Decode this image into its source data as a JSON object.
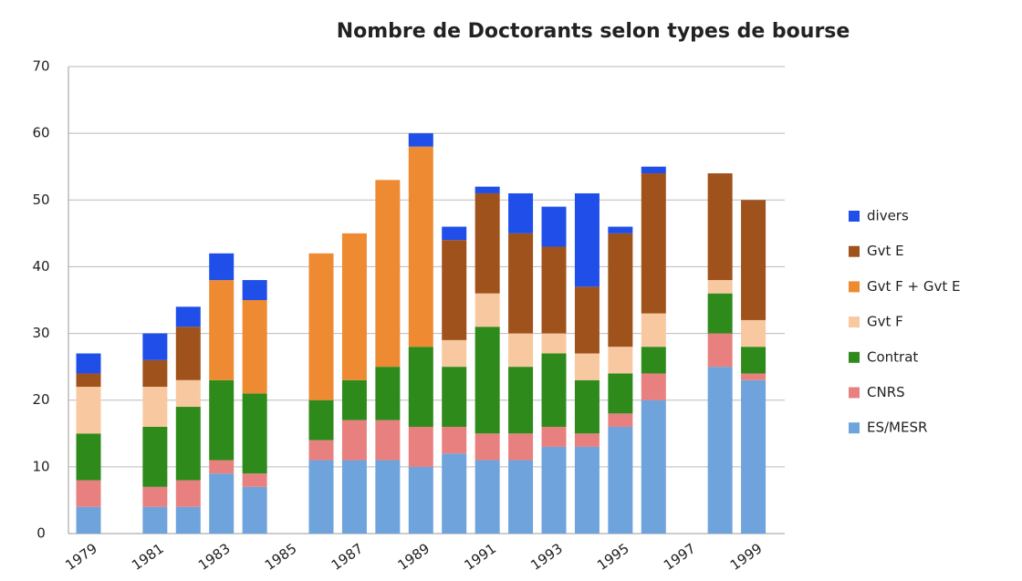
{
  "chart_data": {
    "type": "stacked_bar",
    "title": "Nombre de Doctorants selon types de bourse",
    "categories": [
      "1979",
      null,
      "1981",
      null,
      "1983",
      null,
      "1985",
      null,
      "1987",
      null,
      "1989",
      null,
      "1991",
      null,
      "1993",
      null,
      "1995",
      null,
      "1997",
      null,
      "1999"
    ],
    "series": [
      {
        "name": "ES/MESR",
        "color": "#6fa3dc",
        "values": [
          4,
          null,
          4,
          4,
          9,
          7,
          null,
          11,
          11,
          11,
          10,
          12,
          11,
          11,
          13,
          13,
          16,
          20,
          null,
          25,
          23
        ]
      },
      {
        "name": "CNRS",
        "color": "#e98080",
        "values": [
          4,
          null,
          3,
          4,
          2,
          2,
          null,
          3,
          6,
          6,
          6,
          4,
          4,
          4,
          3,
          2,
          2,
          4,
          null,
          5,
          1
        ]
      },
      {
        "name": "Contrat",
        "color": "#2f8a1c",
        "values": [
          7,
          null,
          9,
          11,
          12,
          12,
          null,
          6,
          6,
          8,
          12,
          9,
          16,
          10,
          11,
          8,
          6,
          4,
          null,
          6,
          4
        ]
      },
      {
        "name": "Gvt F",
        "color": "#f8c9a0",
        "values": [
          7,
          null,
          6,
          4,
          0,
          0,
          null,
          0,
          0,
          0,
          0,
          4,
          5,
          5,
          3,
          4,
          4,
          5,
          null,
          2,
          4
        ]
      },
      {
        "name": "Gvt F + Gvt E",
        "color": "#ee8a32",
        "values": [
          0,
          null,
          0,
          0,
          15,
          14,
          null,
          22,
          22,
          28,
          30,
          0,
          0,
          0,
          0,
          0,
          0,
          0,
          null,
          0,
          0
        ]
      },
      {
        "name": "Gvt E",
        "color": "#a0521c",
        "values": [
          2,
          null,
          4,
          8,
          0,
          0,
          null,
          0,
          0,
          0,
          0,
          15,
          15,
          15,
          13,
          10,
          17,
          21,
          null,
          16,
          18
        ]
      },
      {
        "name": "divers",
        "color": "#1f4fe8",
        "values": [
          3,
          null,
          4,
          3,
          4,
          3,
          null,
          0,
          0,
          0,
          2,
          2,
          1,
          6,
          6,
          14,
          1,
          1,
          null,
          0,
          0
        ]
      }
    ],
    "ylim": [
      0,
      70
    ],
    "yticks": [
      0,
      10,
      20,
      30,
      40,
      50,
      60,
      70
    ],
    "grid": true
  }
}
